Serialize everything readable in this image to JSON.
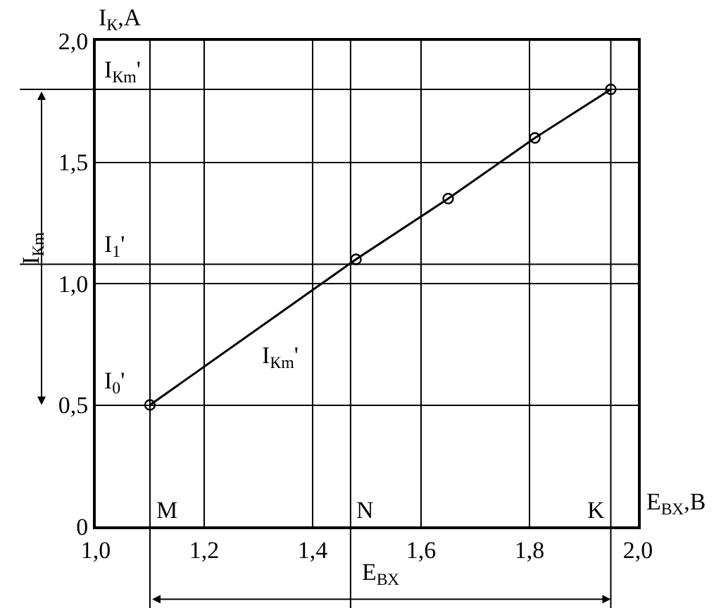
{
  "chart_data": {
    "type": "line",
    "xlabel": "E$_{ВХ}$,В",
    "ylabel": "I$_{К}$,А",
    "x": [
      1.1,
      1.48,
      1.65,
      1.81,
      1.95
    ],
    "series": [
      {
        "color": "#000000",
        "values": [
          0.5,
          1.1,
          1.35,
          1.6,
          1.8
        ]
      }
    ],
    "marker": "circle",
    "line_style": "solid",
    "xlim": [
      1.0,
      2.0
    ],
    "xticks": [
      {
        "value": 1.0,
        "label": "1,0"
      },
      {
        "value": 1.2,
        "label": "1,2"
      },
      {
        "value": 1.4,
        "label": "1,4"
      },
      {
        "value": 1.6,
        "label": "1,6"
      },
      {
        "value": 1.8,
        "label": "1,8"
      },
      {
        "value": 2.0,
        "label": "2,0"
      }
    ],
    "ylim": [
      0,
      2.0
    ],
    "yticks": [
      0,
      {
        "value": 0.5,
        "label": "0,5"
      },
      {
        "value": 1.0,
        "label": "1,0"
      },
      {
        "value": 1.5,
        "label": "1,5"
      },
      {
        "value": 2.0,
        "label": "2,0"
      }
    ],
    "grid": true,
    "ref_lines": [
      {
        "axis": "y",
        "value": 1.8,
        "label": "I$_{Кm}$'"
      },
      {
        "axis": "y",
        "value": 1.08,
        "label": "I$_{1}$'"
      },
      {
        "axis": "x",
        "value": 1.1,
        "label": "M"
      },
      {
        "axis": "x",
        "value": 1.47,
        "label": "N"
      },
      {
        "axis": "x",
        "value": 1.95,
        "label": "K"
      }
    ],
    "annotations": [
      "I$_{0}$'",
      "I$_{Кm}$'",
      "I$_{Кm}$",
      "E$_{ВХ}$"
    ]
  }
}
